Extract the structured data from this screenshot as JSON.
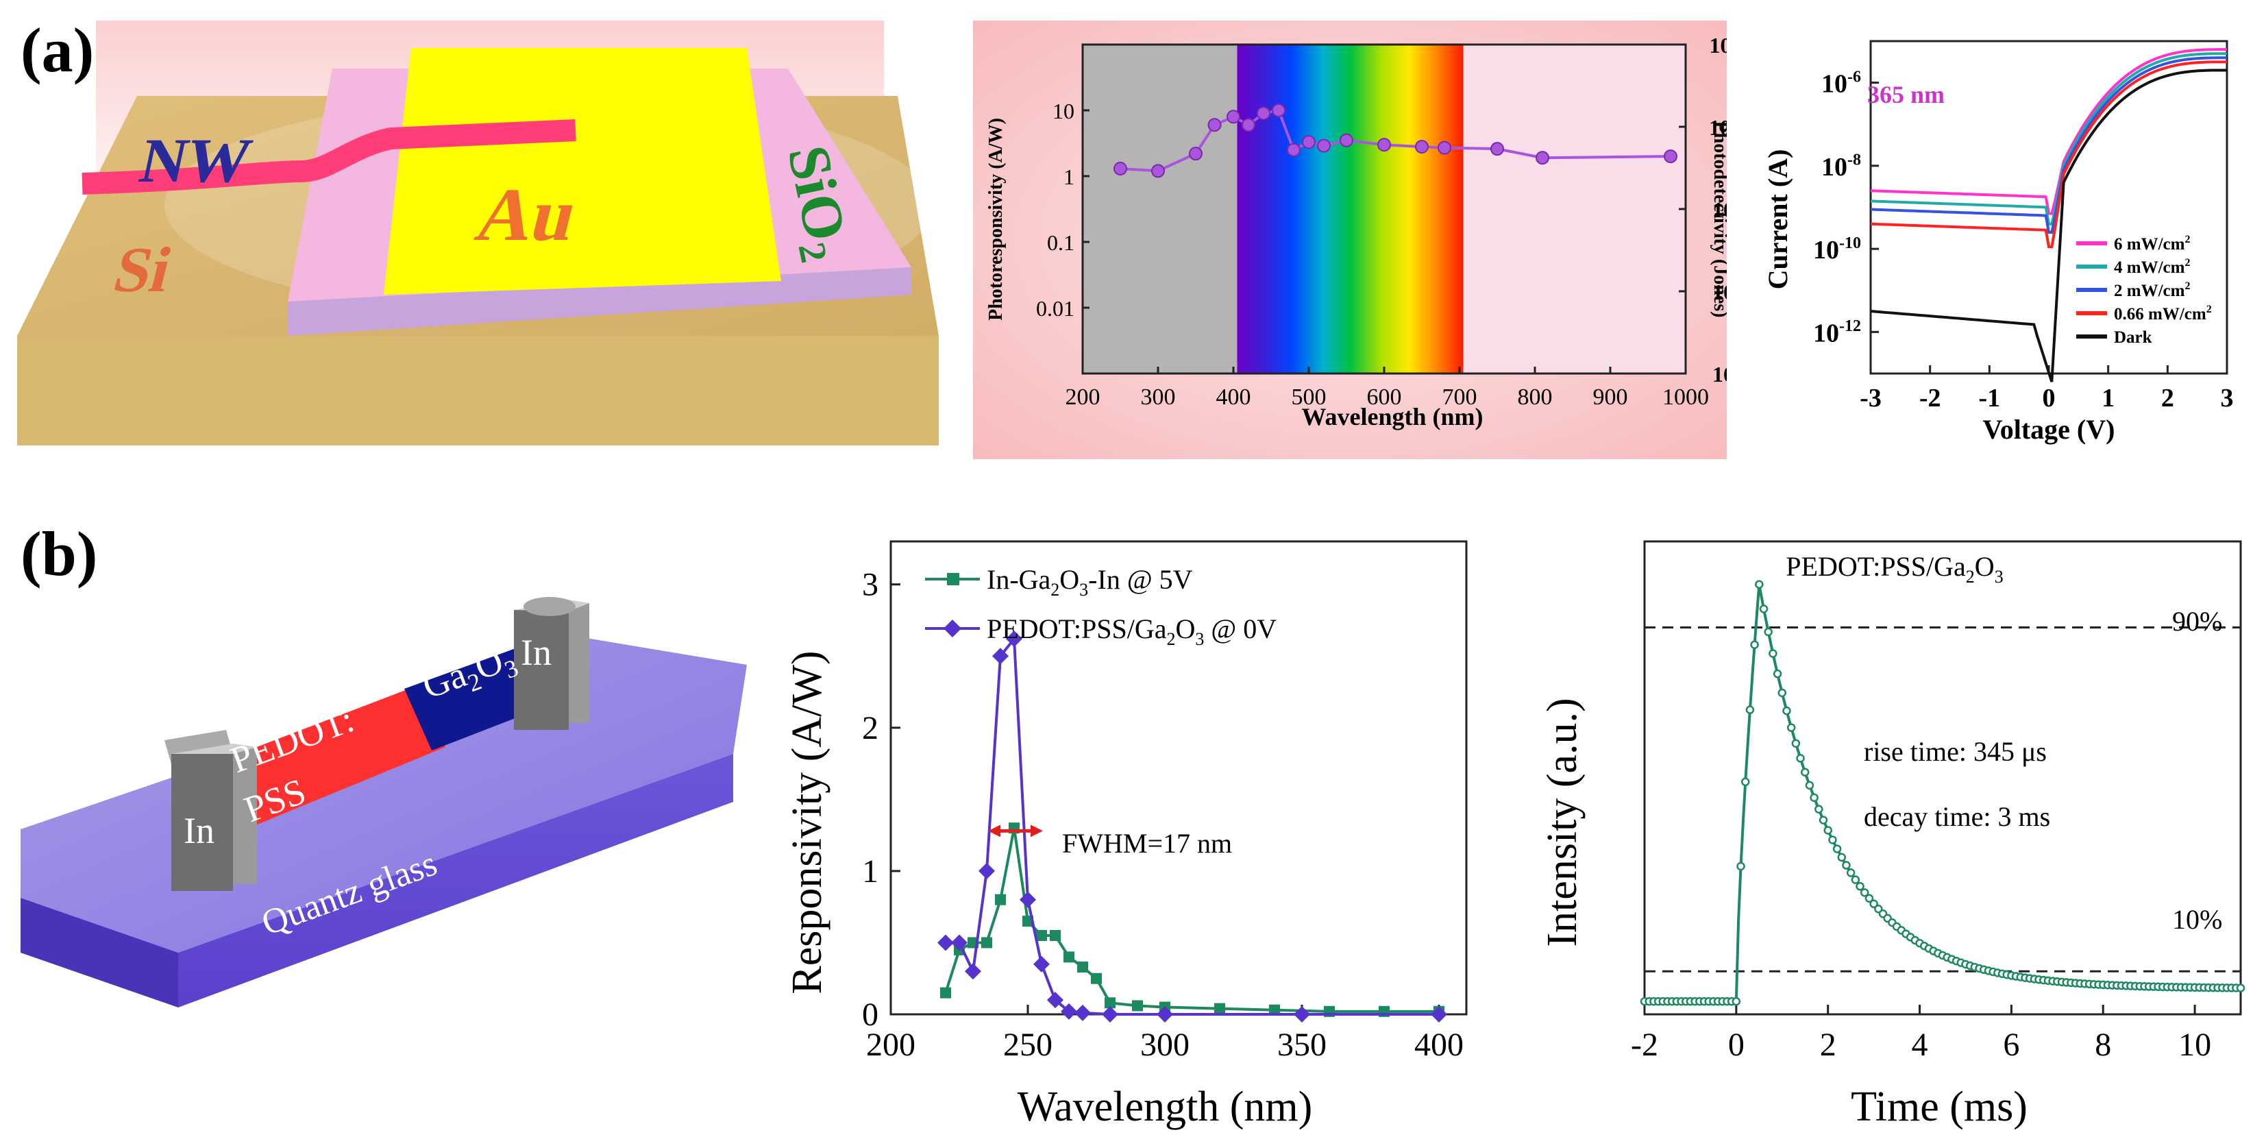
{
  "labels": {
    "a": "(a)",
    "b": "(b)"
  },
  "schematic_a": {
    "nw": "NW",
    "au": "Au",
    "sio2": "SiO",
    "sio2_sub": "2",
    "si": "Si"
  },
  "schematic_b": {
    "in_left": "In",
    "in_right": "In",
    "pedot_line1": "PEDOT:",
    "pedot_line2": "PSS",
    "ga": "Ga",
    "ga_sub1": "2",
    "ga_o": "O",
    "ga_sub2": "3",
    "substrate": "Quantz glass"
  },
  "colors": {
    "purple": "#aa55dd",
    "magenta": "#ff33cc",
    "teal": "#22aaaa",
    "blue": "#3355dd",
    "red": "#ff2222",
    "black": "#111111",
    "green": "#1c8a5e",
    "violet": "#5533cc",
    "pink_bg": "#fbd7d8",
    "gray_band": "#b4b4b4",
    "uv_label": "#cc33cc"
  },
  "chart_data": [
    {
      "id": "a-photoresponsivity",
      "type": "line",
      "xlabel": "Wavelength (nm)",
      "ylabel": "Photoresponsivity (A/W)",
      "y2label": "Photodetectivity (Jones)",
      "xlim": [
        200,
        1000
      ],
      "ylim_log": [
        0.001,
        100
      ],
      "y2lim_log": [
        10000000,
        100000000000
      ],
      "xticks": [
        200,
        300,
        400,
        500,
        600,
        700,
        800,
        900,
        1000
      ],
      "yticks": [
        "10",
        "1",
        "0.1",
        "0.01"
      ],
      "y2ticks": [
        "11",
        "10",
        "9",
        "8",
        "7"
      ],
      "y2tick_base": "10",
      "regions": [
        {
          "name": "UV",
          "from": 200,
          "to": 405
        },
        {
          "name": "Visible",
          "from": 405,
          "to": 705
        },
        {
          "name": "IR",
          "from": 705,
          "to": 1000
        }
      ],
      "series": [
        {
          "name": "Photoresponsivity",
          "x": [
            250,
            300,
            350,
            375,
            400,
            420,
            440,
            460,
            480,
            500,
            520,
            550,
            600,
            650,
            680,
            750,
            810,
            980
          ],
          "values": [
            1.3,
            1.2,
            2.2,
            6.0,
            8.0,
            6.0,
            9.0,
            10.0,
            2.5,
            3.3,
            2.9,
            3.5,
            3.0,
            2.8,
            2.7,
            2.6,
            1.9,
            2.0
          ]
        }
      ]
    },
    {
      "id": "a-iv",
      "type": "line",
      "xlabel": "Voltage (V)",
      "ylabel": "Current (A)",
      "annotation": "365 nm",
      "xlim": [
        -3,
        3
      ],
      "ylim_log_exp": [
        -13,
        -5
      ],
      "xticks": [
        -3,
        -2,
        -1,
        0,
        1,
        2,
        3
      ],
      "yticks_exp": [
        -6,
        -8,
        -10,
        -12
      ],
      "ytick_base": "10",
      "series": [
        {
          "name": "6 mW/cm²",
          "name_main": "6 mW/cm",
          "name_sup": "2",
          "color": "#ff33cc",
          "reverse_log": -8.6,
          "forward_log": -5.2
        },
        {
          "name": "4 mW/cm²",
          "name_main": "4 mW/cm",
          "name_sup": "2",
          "color": "#22aaaa",
          "reverse_log": -8.85,
          "forward_log": -5.3
        },
        {
          "name": "2 mW/cm²",
          "name_main": "2 mW/cm",
          "name_sup": "2",
          "color": "#3355dd",
          "reverse_log": -9.05,
          "forward_log": -5.4
        },
        {
          "name": "0.66 mW/cm²",
          "name_main": "0.66 mW/cm",
          "name_sup": "2",
          "color": "#ff2222",
          "reverse_log": -9.4,
          "forward_log": -5.5
        },
        {
          "name": "Dark",
          "name_main": "Dark",
          "name_sup": "",
          "color": "#111111",
          "reverse_log": -11.5,
          "forward_log": -5.7
        }
      ]
    },
    {
      "id": "b-responsivity",
      "type": "line",
      "xlabel": "Wavelength (nm)",
      "ylabel": "Responsivity (A/W)",
      "xlim": [
        200,
        410
      ],
      "ylim": [
        0,
        3.3
      ],
      "xticks": [
        200,
        250,
        300,
        350,
        400
      ],
      "yticks": [
        0,
        1,
        2,
        3
      ],
      "annotation": "FWHM=17 nm",
      "fwhm_range": [
        237,
        254
      ],
      "fwhm_y": 1.28,
      "series": [
        {
          "name_pre": "In-Ga",
          "name_s1": "2",
          "name_mid": "O",
          "name_s2": "3",
          "name_post": "-In @ 5V",
          "name": "In-Ga2O3-In @ 5V",
          "color": "#1c8a5e",
          "marker": "square",
          "x": [
            220,
            225,
            230,
            235,
            240,
            245,
            250,
            255,
            260,
            265,
            270,
            275,
            280,
            290,
            300,
            320,
            340,
            360,
            380,
            400
          ],
          "values": [
            0.15,
            0.45,
            0.5,
            0.5,
            0.8,
            1.3,
            0.65,
            0.55,
            0.55,
            0.4,
            0.33,
            0.25,
            0.08,
            0.06,
            0.05,
            0.04,
            0.03,
            0.02,
            0.02,
            0.02
          ]
        },
        {
          "name_pre": "PEDOT:PSS/Ga",
          "name_s1": "2",
          "name_mid": "O",
          "name_s2": "3",
          "name_post": " @ 0V",
          "name": "PEDOT:PSS/Ga2O3 @ 0V",
          "color": "#5533cc",
          "marker": "diamond",
          "x": [
            220,
            225,
            230,
            235,
            240,
            245,
            250,
            255,
            260,
            265,
            270,
            280,
            300,
            350,
            400
          ],
          "values": [
            0.5,
            0.5,
            0.3,
            1.0,
            2.5,
            2.62,
            0.8,
            0.35,
            0.1,
            0.02,
            0.01,
            0.0,
            0.0,
            0.0,
            0.0
          ]
        }
      ]
    },
    {
      "id": "b-transient",
      "type": "line",
      "xlabel": "Time (ms)",
      "ylabel": "Intensity (a.u.)",
      "title_pre": "PEDOT:PSS/Ga",
      "title_s1": "2",
      "title_mid": "O",
      "title_s2": "3",
      "title": "PEDOT:PSS/Ga2O3",
      "xlim": [
        -2,
        11
      ],
      "ylim": [
        0,
        1.1
      ],
      "xticks": [
        -2,
        0,
        2,
        4,
        6,
        8,
        10
      ],
      "level_high": 0.9,
      "level_high_label": "90%",
      "level_low": 0.1,
      "level_low_label": "10%",
      "rise_text": "rise time: 345 μs",
      "decay_text": "decay time: 3 ms",
      "rise_time_ms": 0.345,
      "decay_time_ms": 3,
      "peak": {
        "x": 0.5,
        "y": 1.0
      },
      "baseline": 0.03,
      "tail": 0.06
    }
  ]
}
